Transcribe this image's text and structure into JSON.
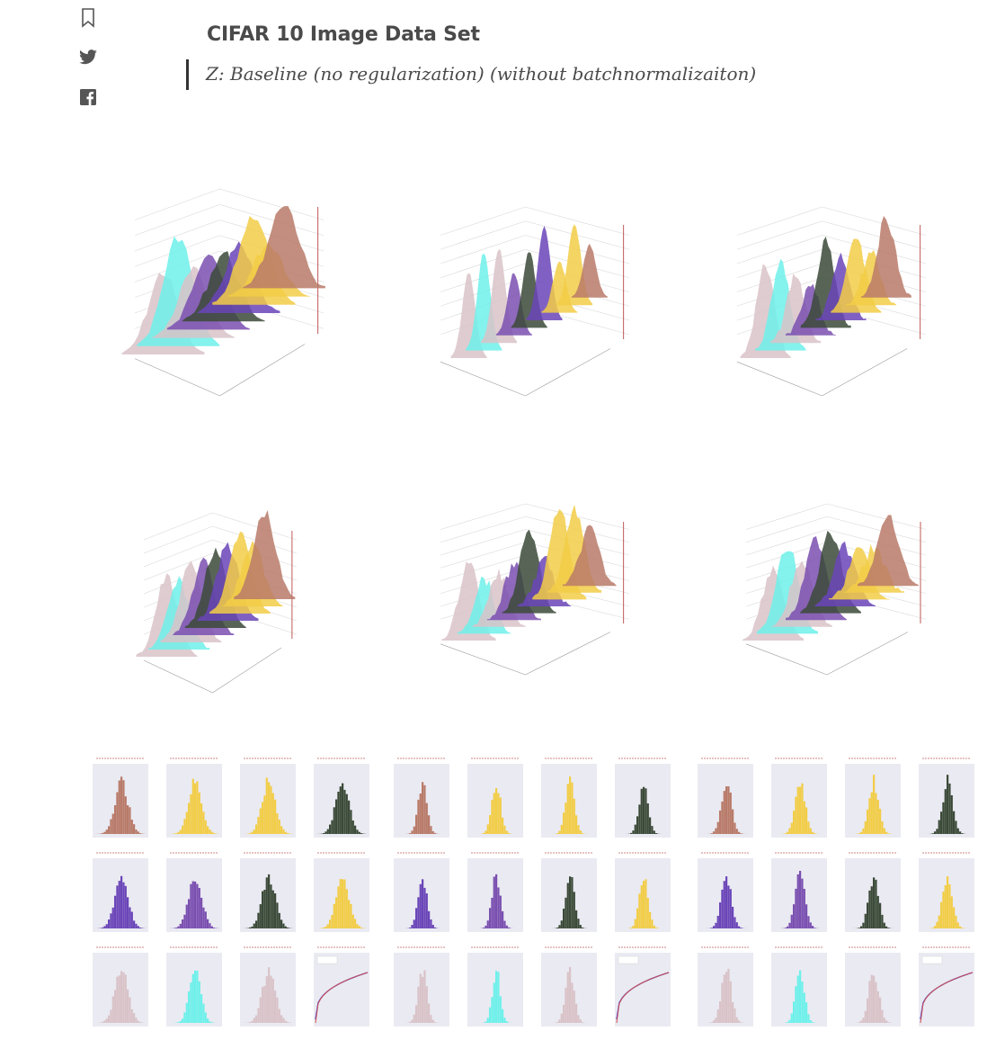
{
  "article": {
    "heading": "CIFAR 10 Image Data Set",
    "quote": "Z: Baseline (no regularization) (without batchnormalizaiton)"
  },
  "sidebar": {
    "icons": [
      "bookmark-icon",
      "twitter-icon",
      "facebook-icon"
    ]
  },
  "colors": {
    "brown": "#b87a68",
    "yellow": "#f2cd47",
    "green": "#3b4a38",
    "purple": "#6a45b8",
    "violet": "#7a4fb0",
    "pink": "#d9c3c8",
    "cyan": "#6ef0ea",
    "accent_line": "#333333",
    "text": "#4a4a4a"
  }
}
